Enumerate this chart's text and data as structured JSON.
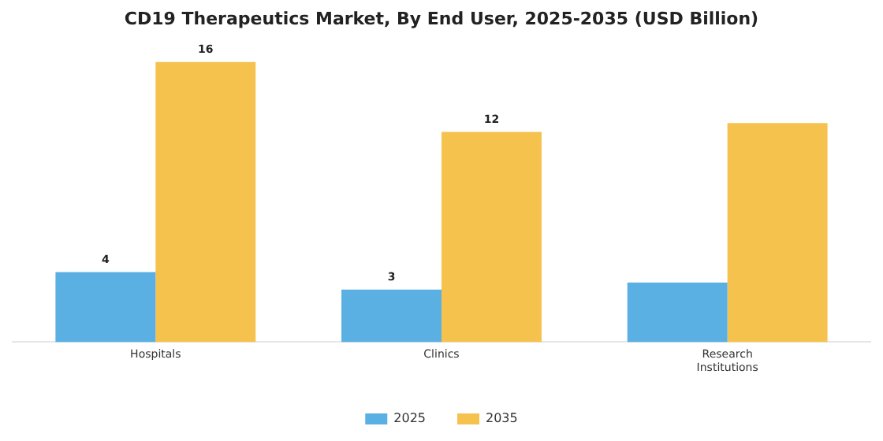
{
  "chart_data": {
    "type": "bar",
    "title": "CD19 Therapeutics Market, By End User, 2025-2035 (USD Billion)",
    "categories": [
      "Hospitals",
      "Clinics",
      "Research\nInstitutions"
    ],
    "series": [
      {
        "name": "2025",
        "color": "#5aafe3",
        "values": [
          4,
          3,
          3.4
        ],
        "value_labels": [
          "4",
          "3",
          null
        ]
      },
      {
        "name": "2035",
        "color": "#f6c24e",
        "values": [
          16,
          12,
          12.5
        ],
        "value_labels": [
          "16",
          "12",
          null
        ]
      }
    ],
    "legend": "bottom",
    "grid": false
  }
}
